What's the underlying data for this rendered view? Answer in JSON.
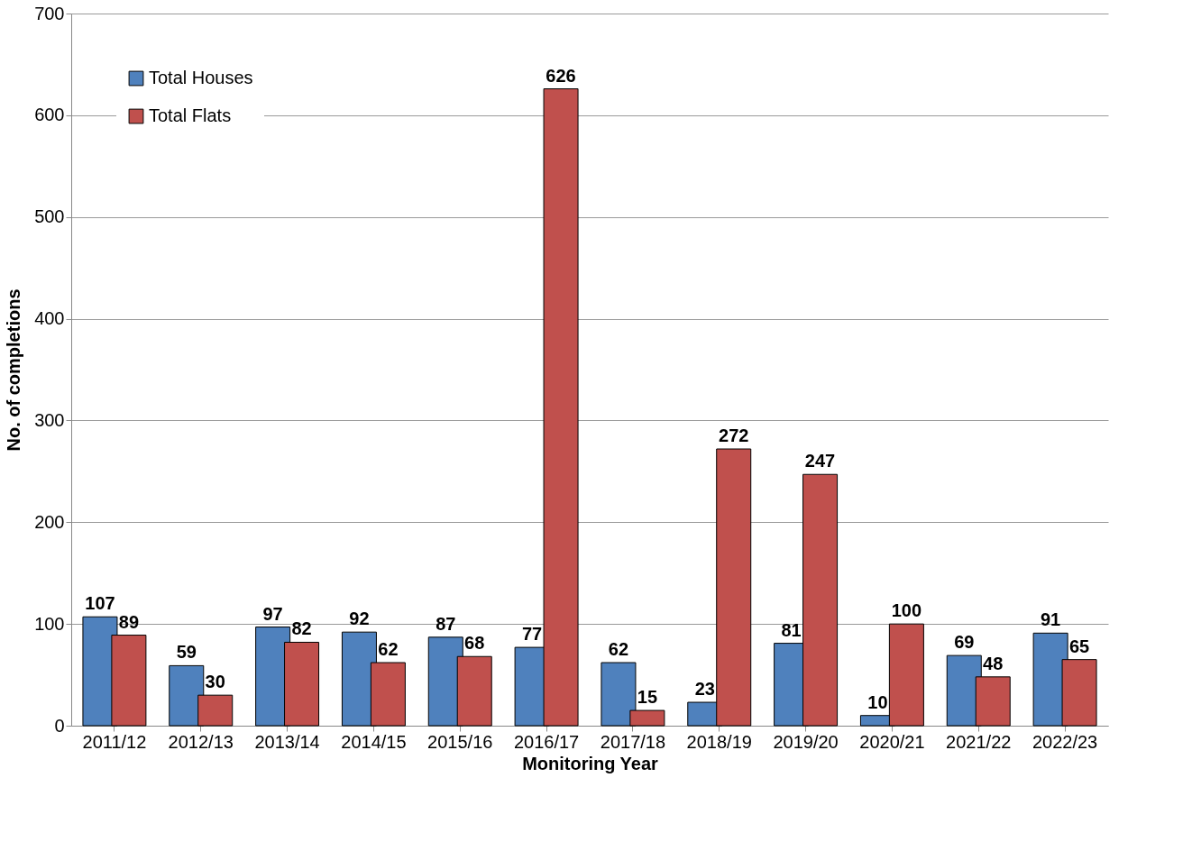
{
  "chart_data": {
    "type": "bar",
    "xlabel": "Monitoring Year",
    "ylabel": "No. of completions",
    "categories": [
      "2011/12",
      "2012/13",
      "2013/14",
      "2014/15",
      "2015/16",
      "2016/17",
      "2017/18",
      "2018/19",
      "2019/20",
      "2020/21",
      "2021/22",
      "2022/23"
    ],
    "series": [
      {
        "name": "Total Houses",
        "color": "#4f81bd",
        "values": [
          107,
          59,
          97,
          92,
          87,
          77,
          62,
          23,
          81,
          10,
          69,
          91
        ]
      },
      {
        "name": "Total Flats",
        "color": "#c0504d",
        "values": [
          89,
          30,
          82,
          62,
          68,
          626,
          15,
          272,
          247,
          100,
          48,
          65
        ]
      }
    ],
    "ylim": [
      0,
      700
    ],
    "yticks": [
      0,
      100,
      200,
      300,
      400,
      500,
      600,
      700
    ],
    "grid": "y",
    "legend": "top left",
    "data_labels": true
  }
}
